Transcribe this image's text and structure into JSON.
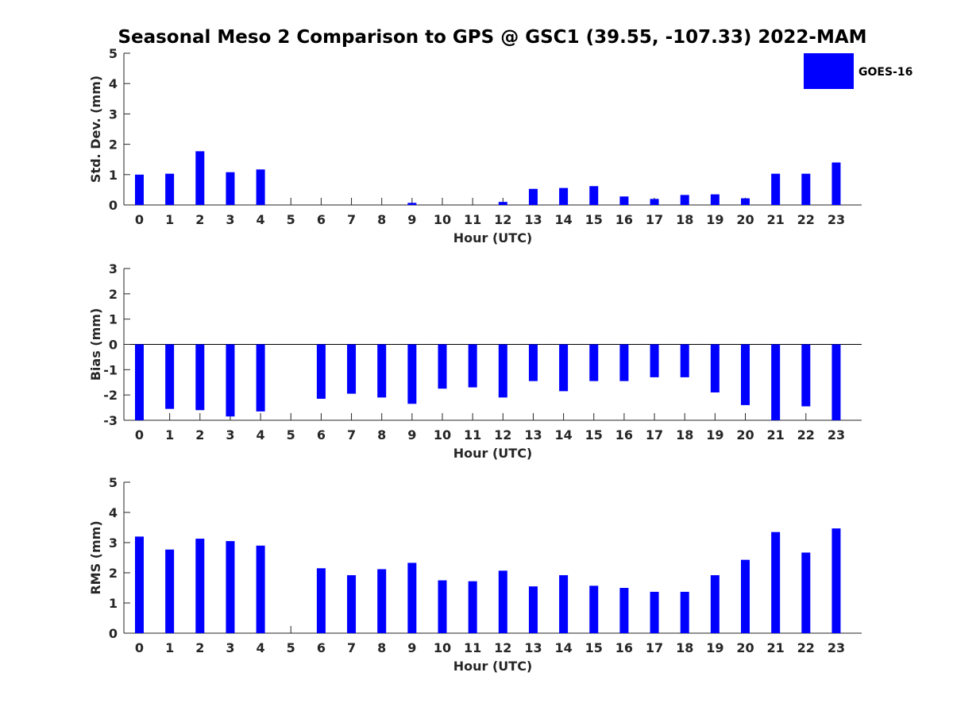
{
  "chart_data": [
    {
      "type": "bar",
      "title": "Seasonal Meso 2 Comparison to GPS @ GSC1 (39.55, -107.33) 2022-MAM",
      "xlabel": "Hour (UTC)",
      "ylabel": "Std. Dev. (mm)",
      "ylim": [
        0,
        5
      ],
      "yticks": [
        0,
        1,
        2,
        3,
        4,
        5
      ],
      "categories": [
        "0",
        "1",
        "2",
        "3",
        "4",
        "5",
        "6",
        "7",
        "8",
        "9",
        "10",
        "11",
        "12",
        "13",
        "14",
        "15",
        "16",
        "17",
        "18",
        "19",
        "20",
        "21",
        "22",
        "23"
      ],
      "series": [
        {
          "name": "GOES-16",
          "color": "#0000ff",
          "values": [
            1.0,
            1.03,
            1.77,
            1.08,
            1.17,
            null,
            null,
            null,
            null,
            0.07,
            null,
            null,
            0.1,
            0.53,
            0.56,
            0.62,
            0.28,
            0.2,
            0.33,
            0.35,
            0.22,
            1.03,
            1.03,
            1.4
          ]
        }
      ],
      "legend": "top-right"
    },
    {
      "type": "bar",
      "xlabel": "Hour (UTC)",
      "ylabel": "Bias (mm)",
      "ylim": [
        -3,
        3
      ],
      "yticks": [
        -3,
        -2,
        -1,
        0,
        1,
        2,
        3
      ],
      "categories": [
        "0",
        "1",
        "2",
        "3",
        "4",
        "5",
        "6",
        "7",
        "8",
        "9",
        "10",
        "11",
        "12",
        "13",
        "14",
        "15",
        "16",
        "17",
        "18",
        "19",
        "20",
        "21",
        "22",
        "23"
      ],
      "series": [
        {
          "name": "GOES-16",
          "color": "#0000ff",
          "values": [
            -3.0,
            -2.55,
            -2.6,
            -2.85,
            -2.65,
            null,
            -2.15,
            -1.95,
            -2.1,
            -2.35,
            -1.75,
            -1.7,
            -2.1,
            -1.45,
            -1.85,
            -1.45,
            -1.45,
            -1.3,
            -1.3,
            -1.9,
            -2.4,
            -3.0,
            -2.45,
            -3.0
          ]
        }
      ]
    },
    {
      "type": "bar",
      "xlabel": "Hour (UTC)",
      "ylabel": "RMS (mm)",
      "ylim": [
        0,
        5
      ],
      "yticks": [
        0,
        1,
        2,
        3,
        4,
        5
      ],
      "categories": [
        "0",
        "1",
        "2",
        "3",
        "4",
        "5",
        "6",
        "7",
        "8",
        "9",
        "10",
        "11",
        "12",
        "13",
        "14",
        "15",
        "16",
        "17",
        "18",
        "19",
        "20",
        "21",
        "22",
        "23"
      ],
      "series": [
        {
          "name": "GOES-16",
          "color": "#0000ff",
          "values": [
            3.2,
            2.77,
            3.13,
            3.05,
            2.9,
            null,
            2.15,
            1.92,
            2.12,
            2.33,
            1.75,
            1.72,
            2.07,
            1.55,
            1.92,
            1.57,
            1.5,
            1.37,
            1.37,
            1.92,
            2.43,
            3.35,
            2.67,
            3.47
          ]
        }
      ]
    }
  ],
  "legend": {
    "label": "GOES-16",
    "color": "#0000ff"
  }
}
